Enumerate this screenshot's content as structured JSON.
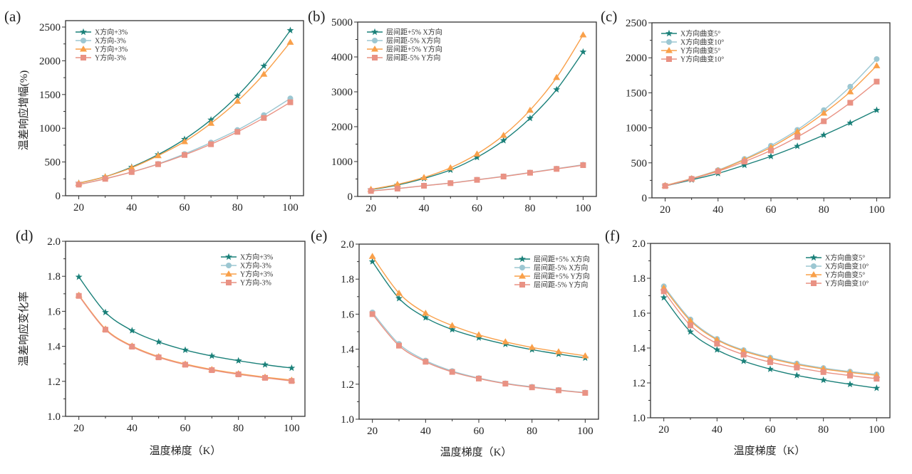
{
  "colors": {
    "teal": "#1a8079",
    "lightblue": "#9cc7d2",
    "orange": "#f9a04a",
    "salmon": "#e99284"
  },
  "chart_data": [
    {
      "panel": "(a)",
      "type": "line",
      "title": "",
      "xlabel": "",
      "ylabel": "温差响应增幅(%)",
      "x": [
        20,
        30,
        40,
        50,
        60,
        70,
        80,
        90,
        100
      ],
      "xticks": [
        20,
        40,
        60,
        80,
        100
      ],
      "xlim": [
        15,
        105
      ],
      "ylim": [
        0,
        2595
      ],
      "yticks": [
        0,
        500,
        1000,
        1500,
        2000,
        2500
      ],
      "ytick_labels": [
        "0",
        "500",
        "1000",
        "1500",
        "2000",
        "2500"
      ],
      "grid": false,
      "legend_position": "top-left",
      "series": [
        {
          "name": "X方向+3%",
          "marker": "star",
          "color": "teal",
          "values": [
            187,
            282,
            425,
            609,
            837,
            1125,
            1480,
            1923,
            2450
          ]
        },
        {
          "name": "X方向-3%",
          "marker": "circle",
          "color": "lightblue",
          "values": [
            165,
            253,
            351,
            472,
            619,
            788,
            974,
            1195,
            1442
          ]
        },
        {
          "name": "Y方向+3%",
          "marker": "triangle",
          "color": "orange",
          "values": [
            185,
            280,
            415,
            594,
            802,
            1073,
            1400,
            1801,
            2275
          ]
        },
        {
          "name": "Y方向-3%",
          "marker": "square",
          "color": "salmon",
          "values": [
            165,
            250,
            351,
            467,
            604,
            763,
            946,
            1153,
            1385
          ]
        }
      ]
    },
    {
      "panel": "(b)",
      "type": "line",
      "title": "",
      "xlabel": "",
      "ylabel": "",
      "x": [
        20,
        30,
        40,
        50,
        60,
        70,
        80,
        90,
        100
      ],
      "xticks": [
        20,
        40,
        60,
        80,
        100
      ],
      "xlim": [
        15,
        105
      ],
      "ylim": [
        0,
        5000
      ],
      "yticks": [
        0,
        1000,
        2000,
        3000,
        4000,
        5000
      ],
      "ytick_labels": [
        "0",
        "1000",
        "2000",
        "3000",
        "4000",
        "5000"
      ],
      "grid": false,
      "legend_position": "top-left",
      "series": [
        {
          "name": "层间距+5% X方向",
          "marker": "star",
          "color": "teal",
          "values": [
            195,
            326,
            516,
            760,
            1121,
            1604,
            2242,
            3064,
            4144
          ]
        },
        {
          "name": "层间距-5% X方向",
          "marker": "circle",
          "color": "lightblue",
          "values": [
            160,
            228,
            310,
            385,
            480,
            577,
            686,
            797,
            910
          ]
        },
        {
          "name": "层间距+5% Y方向",
          "marker": "triangle",
          "color": "orange",
          "values": [
            204,
            346,
            544,
            822,
            1217,
            1753,
            2473,
            3410,
            4633
          ]
        },
        {
          "name": "层间距-5% Y方向",
          "marker": "square",
          "color": "salmon",
          "values": [
            156,
            224,
            306,
            381,
            475,
            571,
            679,
            789,
            897
          ]
        }
      ]
    },
    {
      "panel": "(c)",
      "type": "line",
      "title": "",
      "xlabel": "",
      "ylabel": "",
      "x": [
        20,
        30,
        40,
        50,
        60,
        70,
        80,
        90,
        100
      ],
      "xticks": [
        20,
        40,
        60,
        80,
        100
      ],
      "xlim": [
        15,
        105
      ],
      "ylim": [
        0,
        2500
      ],
      "yticks": [
        0,
        500,
        1000,
        1500,
        2000,
        2500
      ],
      "ytick_labels": [
        "0",
        "500",
        "1000",
        "1500",
        "2000",
        "2500"
      ],
      "grid": false,
      "legend_position": "top-left",
      "series": [
        {
          "name": "X方向曲变5°",
          "marker": "star",
          "color": "teal",
          "values": [
            169,
            257,
            349,
            467,
            593,
            738,
            897,
            1070,
            1253
          ]
        },
        {
          "name": "X方向曲变10°",
          "marker": "circle",
          "color": "lightblue",
          "values": [
            176,
            277,
            396,
            555,
            745,
            971,
            1253,
            1588,
            1982
          ]
        },
        {
          "name": "Y方向曲变5°",
          "marker": "triangle",
          "color": "orange",
          "values": [
            176,
            274,
            389,
            545,
            721,
            945,
            1209,
            1514,
            1886
          ]
        },
        {
          "name": "Y方向曲变10°",
          "marker": "square",
          "color": "salmon",
          "values": [
            169,
            270,
            379,
            518,
            677,
            870,
            1094,
            1358,
            1660
          ]
        }
      ]
    },
    {
      "panel": "(d)",
      "type": "line",
      "title": "",
      "xlabel": "温度梯度（K）",
      "ylabel": "温差响应变化率",
      "x": [
        20,
        30,
        40,
        50,
        60,
        70,
        80,
        90,
        100
      ],
      "xticks": [
        20,
        40,
        60,
        80,
        100
      ],
      "xlim": [
        15,
        105
      ],
      "ylim": [
        1.0,
        2.0
      ],
      "yticks": [
        1.0,
        1.2,
        1.4,
        1.6,
        1.8,
        2.0
      ],
      "ytick_labels": [
        "1.0",
        "1.2",
        "1.4",
        "1.6",
        "1.8",
        "2.0"
      ],
      "grid": false,
      "legend_position": "top-right",
      "series": [
        {
          "name": "X方向+3%",
          "marker": "star",
          "color": "teal",
          "values": [
            1.796,
            1.594,
            1.49,
            1.425,
            1.379,
            1.345,
            1.318,
            1.295,
            1.276
          ]
        },
        {
          "name": "X方向-3%",
          "marker": "circle",
          "color": "lightblue",
          "values": [
            1.69,
            1.497,
            1.4,
            1.339,
            1.297,
            1.265,
            1.241,
            1.221,
            1.204
          ]
        },
        {
          "name": "Y方向+3%",
          "marker": "triangle",
          "color": "orange",
          "values": [
            1.692,
            1.499,
            1.402,
            1.341,
            1.299,
            1.268,
            1.244,
            1.224,
            1.207
          ]
        },
        {
          "name": "Y方向-3%",
          "marker": "square",
          "color": "salmon",
          "values": [
            1.688,
            1.495,
            1.398,
            1.337,
            1.295,
            1.264,
            1.24,
            1.22,
            1.202
          ]
        }
      ]
    },
    {
      "panel": "(e)",
      "type": "line",
      "title": "",
      "xlabel": "温度梯度（K）",
      "ylabel": "",
      "x": [
        20,
        30,
        40,
        50,
        60,
        70,
        80,
        90,
        100
      ],
      "xticks": [
        20,
        40,
        60,
        80,
        100
      ],
      "xlim": [
        15,
        105
      ],
      "ylim": [
        1.0,
        2.0
      ],
      "yticks": [
        1.0,
        1.2,
        1.4,
        1.6,
        1.8,
        2.0
      ],
      "ytick_labels": [
        "1.0",
        "1.2",
        "1.4",
        "1.6",
        "1.8",
        "2.0"
      ],
      "grid": false,
      "legend_position": "top-right",
      "series": [
        {
          "name": "层间距+5% X方向",
          "marker": "star",
          "color": "teal",
          "values": [
            1.9,
            1.69,
            1.58,
            1.512,
            1.465,
            1.428,
            1.397,
            1.372,
            1.35
          ]
        },
        {
          "name": "层间距-5% X方向",
          "marker": "circle",
          "color": "lightblue",
          "values": [
            1.61,
            1.43,
            1.335,
            1.275,
            1.235,
            1.205,
            1.185,
            1.167,
            1.152
          ]
        },
        {
          "name": "层间距+5% Y方向",
          "marker": "triangle",
          "color": "orange",
          "values": [
            1.93,
            1.72,
            1.605,
            1.535,
            1.482,
            1.442,
            1.41,
            1.385,
            1.362
          ]
        },
        {
          "name": "层间距-5% Y方向",
          "marker": "square",
          "color": "salmon",
          "values": [
            1.6,
            1.42,
            1.328,
            1.27,
            1.232,
            1.203,
            1.182,
            1.165,
            1.15
          ]
        }
      ]
    },
    {
      "panel": "(f)",
      "type": "line",
      "title": "",
      "xlabel": "温度梯度（K）",
      "ylabel": "",
      "x": [
        20,
        30,
        40,
        50,
        60,
        70,
        80,
        90,
        100
      ],
      "xticks": [
        20,
        40,
        60,
        80,
        100
      ],
      "xlim": [
        15,
        105
      ],
      "ylim": [
        1.0,
        2.0
      ],
      "yticks": [
        1.0,
        1.2,
        1.4,
        1.6,
        1.8,
        2.0
      ],
      "ytick_labels": [
        "1.0",
        "1.2",
        "1.4",
        "1.6",
        "1.8",
        "2.0"
      ],
      "grid": false,
      "legend_position": "top-right",
      "series": [
        {
          "name": "X方向曲变5°",
          "marker": "star",
          "color": "teal",
          "values": [
            1.689,
            1.493,
            1.39,
            1.325,
            1.279,
            1.243,
            1.216,
            1.192,
            1.17
          ]
        },
        {
          "name": "X方向曲变10°",
          "marker": "circle",
          "color": "lightblue",
          "values": [
            1.754,
            1.564,
            1.452,
            1.388,
            1.345,
            1.311,
            1.285,
            1.265,
            1.249
          ]
        },
        {
          "name": "Y方向曲变5°",
          "marker": "triangle",
          "color": "orange",
          "values": [
            1.745,
            1.556,
            1.447,
            1.383,
            1.34,
            1.306,
            1.28,
            1.26,
            1.243
          ]
        },
        {
          "name": "Y方向曲变10°",
          "marker": "square",
          "color": "salmon",
          "values": [
            1.725,
            1.53,
            1.425,
            1.362,
            1.319,
            1.288,
            1.262,
            1.242,
            1.224
          ]
        }
      ]
    }
  ]
}
